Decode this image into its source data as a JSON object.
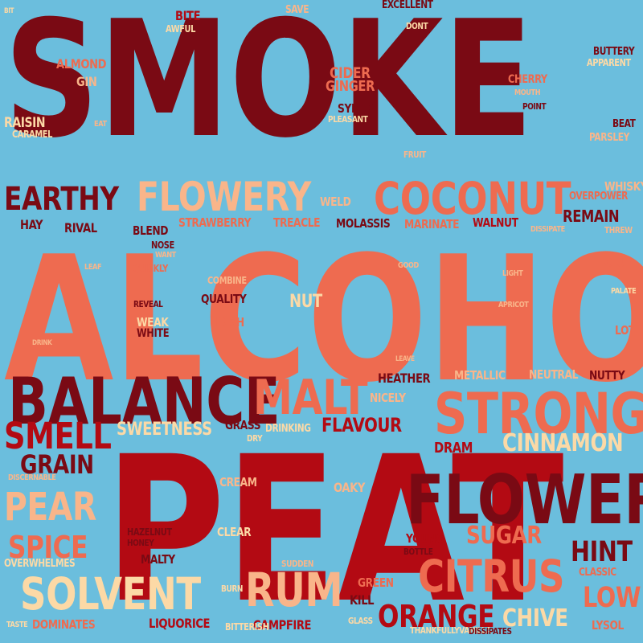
{
  "background": "#6BBEDD",
  "palette": {
    "dark_red": "#7A0A14",
    "red": "#B30A13",
    "coral": "#EE6B50",
    "peach": "#F9B58A",
    "cream": "#FCD9A6"
  },
  "words": [
    {
      "text": "SMOKE",
      "tone": "dark_red"
    },
    {
      "text": "ALCOHOL",
      "tone": "coral"
    },
    {
      "text": "PEAT",
      "tone": "red"
    },
    {
      "text": "BALANCE",
      "tone": "dark_red"
    },
    {
      "text": "FLOWER",
      "tone": "dark_red"
    },
    {
      "text": "MALT",
      "tone": "coral"
    },
    {
      "text": "STRONG",
      "tone": "coral"
    },
    {
      "text": "COCONUT",
      "tone": "coral"
    },
    {
      "text": "FLOWERY",
      "tone": "peach"
    },
    {
      "text": "EARTHY",
      "tone": "dark_red"
    },
    {
      "text": "SOLVENT",
      "tone": "cream"
    },
    {
      "text": "CITRUS",
      "tone": "coral"
    },
    {
      "text": "RUM",
      "tone": "peach"
    },
    {
      "text": "ORANGE",
      "tone": "red"
    },
    {
      "text": "PEAR",
      "tone": "peach"
    },
    {
      "text": "SMELL",
      "tone": "red"
    },
    {
      "text": "CINNAMON",
      "tone": "cream"
    },
    {
      "text": "SPICE",
      "tone": "coral"
    },
    {
      "text": "GRAIN",
      "tone": "dark_red"
    },
    {
      "text": "HINT",
      "tone": "dark_red"
    },
    {
      "text": "LOW",
      "tone": "coral"
    },
    {
      "text": "SUGAR",
      "tone": "coral"
    },
    {
      "text": "FLAVOUR",
      "tone": "red"
    },
    {
      "text": "CHIVE",
      "tone": "cream"
    },
    {
      "text": "SWEETNESS",
      "tone": "cream"
    },
    {
      "text": "REMAIN",
      "tone": "dark_red"
    },
    {
      "text": "DRAM",
      "tone": "red"
    },
    {
      "text": "LIQUORICE",
      "tone": "red"
    },
    {
      "text": "CAMPFIRE",
      "tone": "red"
    },
    {
      "text": "NUT",
      "tone": "cream"
    },
    {
      "text": "KILL",
      "tone": "dark_red"
    },
    {
      "text": "HEATHER",
      "tone": "dark_red"
    },
    {
      "text": "NUTTY",
      "tone": "dark_red"
    },
    {
      "text": "NICELY",
      "tone": "peach"
    },
    {
      "text": "METALLIC",
      "tone": "peach"
    },
    {
      "text": "NEUTRAL",
      "tone": "peach"
    },
    {
      "text": "YOUNG",
      "tone": "red"
    },
    {
      "text": "OAKY",
      "tone": "peach"
    },
    {
      "text": "CREAM",
      "tone": "peach"
    },
    {
      "text": "GREEN",
      "tone": "coral"
    },
    {
      "text": "CLEAR",
      "tone": "cream"
    },
    {
      "text": "MALTY",
      "tone": "dark_red"
    },
    {
      "text": "QUALITY",
      "tone": "dark_red"
    },
    {
      "text": "WEAK",
      "tone": "cream"
    },
    {
      "text": "WHITE",
      "tone": "dark_red"
    },
    {
      "text": "IRISH",
      "tone": "coral"
    },
    {
      "text": "STRAWBERRY",
      "tone": "coral"
    },
    {
      "text": "TREACLE",
      "tone": "coral"
    },
    {
      "text": "MOLASSIS",
      "tone": "dark_red"
    },
    {
      "text": "MARINATE",
      "tone": "coral"
    },
    {
      "text": "WALNUT",
      "tone": "red"
    },
    {
      "text": "BLEND",
      "tone": "dark_red"
    },
    {
      "text": "WELD",
      "tone": "peach"
    },
    {
      "text": "HAY",
      "tone": "dark_red"
    },
    {
      "text": "RIVAL",
      "tone": "dark_red"
    },
    {
      "text": "NOSE",
      "tone": "dark_red"
    },
    {
      "text": "WANT",
      "tone": "peach"
    },
    {
      "text": "QUICKLY",
      "tone": "coral"
    },
    {
      "text": "LEAF",
      "tone": "peach"
    },
    {
      "text": "COMBINE",
      "tone": "peach"
    },
    {
      "text": "REVEAL",
      "tone": "dark_red"
    },
    {
      "text": "GOOD",
      "tone": "peach"
    },
    {
      "text": "LIGHT",
      "tone": "peach"
    },
    {
      "text": "APRICOT",
      "tone": "peach"
    },
    {
      "text": "CLUE",
      "tone": "coral"
    },
    {
      "text": "PALATE",
      "tone": "cream"
    },
    {
      "text": "LOT",
      "tone": "coral"
    },
    {
      "text": "LEAVE",
      "tone": "peach"
    },
    {
      "text": "DRINK",
      "tone": "peach"
    },
    {
      "text": "WHISKY",
      "tone": "peach"
    },
    {
      "text": "OVERPOWER",
      "tone": "coral"
    },
    {
      "text": "DISSIPATE",
      "tone": "peach"
    },
    {
      "text": "THREW",
      "tone": "peach"
    },
    {
      "text": "CIDER",
      "tone": "coral"
    },
    {
      "text": "GINGER",
      "tone": "coral"
    },
    {
      "text": "SYRUP",
      "tone": "dark_red"
    },
    {
      "text": "PLEASANT",
      "tone": "cream"
    },
    {
      "text": "FRUIT",
      "tone": "peach"
    },
    {
      "text": "CHERRY",
      "tone": "coral"
    },
    {
      "text": "MOUTH",
      "tone": "peach"
    },
    {
      "text": "POINT",
      "tone": "dark_red"
    },
    {
      "text": "BEAT",
      "tone": "dark_red"
    },
    {
      "text": "PARSLEY",
      "tone": "peach"
    },
    {
      "text": "BUTTERY",
      "tone": "dark_red"
    },
    {
      "text": "APPARENT",
      "tone": "cream"
    },
    {
      "text": "EXCELLENT",
      "tone": "dark_red"
    },
    {
      "text": "DONT",
      "tone": "cream"
    },
    {
      "text": "SAVE",
      "tone": "peach"
    },
    {
      "text": "BITE",
      "tone": "red"
    },
    {
      "text": "AWFUL",
      "tone": "cream"
    },
    {
      "text": "BITTER",
      "tone": "dark_red"
    },
    {
      "text": "BIT",
      "tone": "cream"
    },
    {
      "text": "ALMOND",
      "tone": "coral"
    },
    {
      "text": "GIN",
      "tone": "peach"
    },
    {
      "text": "RAISIN",
      "tone": "cream"
    },
    {
      "text": "CARAMEL",
      "tone": "cream"
    },
    {
      "text": "EAT",
      "tone": "peach"
    },
    {
      "text": "GRASS",
      "tone": "dark_red"
    },
    {
      "text": "DRINKING",
      "tone": "cream"
    },
    {
      "text": "DRY",
      "tone": "cream"
    },
    {
      "text": "DISCERNABLE",
      "tone": "peach"
    },
    {
      "text": "HAZELNUT",
      "tone": "dark_red"
    },
    {
      "text": "HONEY",
      "tone": "dark_red"
    },
    {
      "text": "OVERWHELMES",
      "tone": "cream"
    },
    {
      "text": "BOTTLE",
      "tone": "dark_red"
    },
    {
      "text": "SUDDEN",
      "tone": "peach"
    },
    {
      "text": "CLASSIC",
      "tone": "coral"
    },
    {
      "text": "BURN",
      "tone": "cream"
    },
    {
      "text": "TASTE",
      "tone": "cream"
    },
    {
      "text": "DOMINATES",
      "tone": "coral"
    },
    {
      "text": "BITTERISH",
      "tone": "cream"
    },
    {
      "text": "GLASS",
      "tone": "cream"
    },
    {
      "text": "THANKFULLYVANILLA",
      "tone": "cream"
    },
    {
      "text": "DISSIPATES",
      "tone": "dark_red"
    },
    {
      "text": "LYSOL",
      "tone": "coral"
    }
  ]
}
